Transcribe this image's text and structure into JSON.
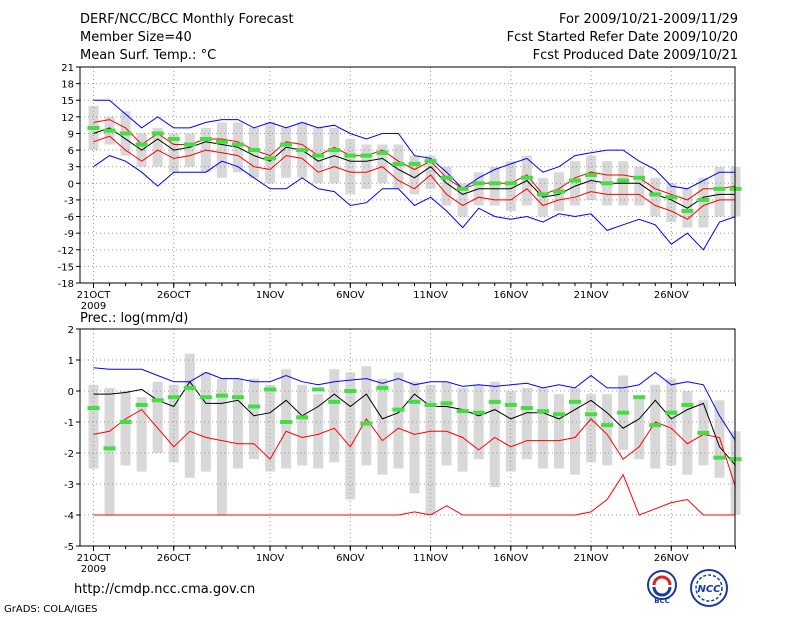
{
  "header": {
    "title": "DERF/NCC/BCC Monthly Forecast",
    "member_size": "Member Size=40",
    "variable": "Mean Surf. Temp.: °C",
    "period": "For 2009/10/21-2009/11/29",
    "start_date": "Fcst Started Refer Date 2009/10/20",
    "produced_date": "Fcst Produced Date 2009/10/21"
  },
  "footer": {
    "url": "http://cmdp.ncc.cma.gov.cn",
    "credit": "GrADS: COLA/IGES",
    "logo_left_text": "BCC",
    "logo_right_text": "NCC"
  },
  "colors": {
    "max_line": "#0000ff",
    "min_line": "#ff0000",
    "mean_line": "#000000",
    "box": "#d8d8d8",
    "green": "#44dd44",
    "grid": "#999999"
  },
  "chart_data": [
    {
      "type": "line",
      "title": "Mean Surf. Temp.: °C",
      "ylim": [
        -18,
        21
      ],
      "yticks": [
        -18,
        -15,
        -12,
        -9,
        -6,
        -3,
        0,
        3,
        6,
        9,
        12,
        15,
        18,
        21
      ],
      "xticks": [
        {
          "day": 0,
          "label": "21OCT",
          "sub": "2009"
        },
        {
          "day": 5,
          "label": "26OCT"
        },
        {
          "day": 11,
          "label": "1NOV"
        },
        {
          "day": 16,
          "label": "6NOV"
        },
        {
          "day": 21,
          "label": "11NOV"
        },
        {
          "day": 26,
          "label": "16NOV"
        },
        {
          "day": 31,
          "label": "21NOV"
        },
        {
          "day": 36,
          "label": "26NOV"
        }
      ],
      "series": [
        {
          "name": "max",
          "color": "#0000ff",
          "values": [
            15,
            15,
            12.5,
            10,
            12,
            10,
            10,
            11,
            11.5,
            11.5,
            10,
            11,
            10,
            11,
            10,
            10.5,
            9,
            8,
            9,
            9,
            5,
            4.5,
            2,
            -1,
            1,
            2.5,
            3.5,
            4.5,
            2,
            3,
            5,
            5.5,
            6,
            6,
            4,
            2.5,
            -0.5,
            -1,
            0.5,
            2,
            2
          ]
        },
        {
          "name": "upper",
          "color": "#ff0000",
          "values": [
            11,
            11.5,
            10,
            7,
            9,
            7,
            7,
            8,
            8,
            7.5,
            6,
            5,
            7.5,
            7,
            5,
            6.5,
            5,
            5,
            6,
            4,
            2.5,
            4,
            1,
            -1,
            0,
            0,
            0,
            1.5,
            -2,
            -1,
            1,
            2,
            1.5,
            1.5,
            1,
            -1,
            -2,
            -3,
            -1,
            -1,
            -0.5
          ]
        },
        {
          "name": "mean",
          "color": "#000000",
          "values": [
            9,
            10,
            8,
            6,
            8,
            6,
            6.5,
            7.5,
            7,
            6.5,
            5,
            4,
            6.5,
            6,
            4,
            5,
            4,
            4,
            4.5,
            2.5,
            1,
            3,
            0,
            -2,
            -1,
            -1,
            -1,
            0.5,
            -2.5,
            -2,
            -0.5,
            0.5,
            0,
            0,
            0,
            -2,
            -3,
            -4.5,
            -2.5,
            -2,
            -2
          ]
        },
        {
          "name": "lower",
          "color": "#ff0000",
          "values": [
            7.5,
            8.5,
            6,
            4,
            6,
            4.5,
            5,
            6,
            5.5,
            5,
            3,
            2.5,
            5,
            4.5,
            2,
            3,
            2,
            2,
            3,
            0.5,
            -1,
            1.5,
            -2,
            -4,
            -2.5,
            -3,
            -3,
            -1,
            -4,
            -3,
            -2.5,
            -1.5,
            -2,
            -2,
            -2,
            -4,
            -5,
            -6.5,
            -4,
            -3,
            -3
          ]
        },
        {
          "name": "min",
          "color": "#0000ff",
          "values": [
            3,
            5,
            4,
            2,
            -0.5,
            2,
            2,
            2,
            4,
            3,
            1,
            -1,
            -1,
            1,
            -1,
            -1.5,
            -4,
            -3.5,
            -1,
            -1,
            -4,
            -2.5,
            -5,
            -8,
            -4.5,
            -6,
            -6.5,
            -6,
            -7,
            -5.5,
            -6,
            -5.5,
            -8.5,
            -7.5,
            -6.5,
            -7.5,
            -11,
            -9,
            -12,
            -7,
            -6
          ]
        }
      ],
      "boxes": [
        [
          6,
          14
        ],
        [
          7,
          12
        ],
        [
          5,
          13
        ],
        [
          3,
          9
        ],
        [
          3,
          10
        ],
        [
          2,
          9
        ],
        [
          3,
          9
        ],
        [
          2,
          10
        ],
        [
          1,
          11
        ],
        [
          2,
          11
        ],
        [
          1,
          10
        ],
        [
          0,
          11
        ],
        [
          1,
          10
        ],
        [
          1,
          11
        ],
        [
          0,
          10
        ],
        [
          0,
          10
        ],
        [
          -2,
          8
        ],
        [
          -1,
          7
        ],
        [
          0,
          7
        ],
        [
          -1,
          7
        ],
        [
          -2,
          5
        ],
        [
          -1,
          5
        ],
        [
          -4,
          3
        ],
        [
          -6,
          0
        ],
        [
          -4,
          2
        ],
        [
          -4,
          3
        ],
        [
          -5,
          4
        ],
        [
          -4,
          5
        ],
        [
          -6,
          1
        ],
        [
          -5,
          2
        ],
        [
          -4,
          4
        ],
        [
          -3,
          5
        ],
        [
          -4,
          4
        ],
        [
          -4,
          4
        ],
        [
          -4,
          3
        ],
        [
          -6,
          1
        ],
        [
          -7,
          0
        ],
        [
          -8,
          -1
        ],
        [
          -8,
          1
        ],
        [
          -6,
          3
        ],
        [
          -6,
          3
        ]
      ],
      "green": [
        10,
        9.5,
        9,
        7,
        9,
        8,
        7,
        8,
        7.5,
        7,
        6,
        4.5,
        7,
        6,
        5,
        6,
        5,
        5,
        5.5,
        3.5,
        3.5,
        4,
        1,
        -1,
        0,
        0,
        0,
        1,
        -2,
        -1.5,
        0.5,
        1.5,
        0,
        0.5,
        1,
        -2,
        -2.5,
        -5,
        -3,
        -1,
        -1
      ]
    },
    {
      "type": "line",
      "title": "Prec.: log(mm/d)",
      "ylim": [
        -5,
        2
      ],
      "yticks": [
        -5,
        -4,
        -3,
        -2,
        -1,
        0,
        1,
        2
      ],
      "xticks": [
        {
          "day": 0,
          "label": "21OCT",
          "sub": "2009"
        },
        {
          "day": 5,
          "label": "26OCT"
        },
        {
          "day": 11,
          "label": "1NOV"
        },
        {
          "day": 16,
          "label": "6NOV"
        },
        {
          "day": 21,
          "label": "11NOV"
        },
        {
          "day": 26,
          "label": "16NOV"
        },
        {
          "day": 31,
          "label": "21NOV"
        },
        {
          "day": 36,
          "label": "26NOV"
        }
      ],
      "series": [
        {
          "name": "max",
          "color": "#0000ff",
          "values": [
            0.75,
            0.7,
            0.7,
            0.7,
            0.5,
            0.3,
            0.3,
            0.6,
            0.4,
            0.4,
            0.3,
            0.3,
            0.5,
            0.3,
            0.2,
            0.3,
            0.35,
            0.4,
            0.25,
            0.4,
            0.2,
            0.3,
            0.3,
            0.15,
            0.2,
            0.15,
            0.2,
            0.25,
            0.1,
            0.2,
            0.1,
            0.5,
            0.1,
            0.1,
            0.2,
            0.6,
            0.2,
            0.3,
            0.2,
            -0.8,
            -1.6
          ]
        },
        {
          "name": "mean",
          "color": "#000000",
          "values": [
            -0.1,
            -0.1,
            -0.05,
            0.05,
            -0.3,
            -0.5,
            0.3,
            -0.4,
            -0.4,
            -0.3,
            -0.8,
            -0.7,
            -0.3,
            -0.8,
            -0.5,
            -0.1,
            -0.5,
            -0.1,
            -0.9,
            -0.7,
            -0.1,
            -0.5,
            -0.5,
            -0.6,
            -0.8,
            -0.6,
            -0.9,
            -0.7,
            -0.7,
            -0.9,
            -0.6,
            -0.3,
            -0.7,
            -1.2,
            -0.9,
            -0.3,
            -0.9,
            -0.6,
            -0.4,
            -1.8,
            -2.4
          ]
        },
        {
          "name": "low",
          "color": "#ff0000",
          "values": [
            -1.4,
            -1.3,
            -0.9,
            -0.6,
            -1.2,
            -1.8,
            -1.3,
            -1.5,
            -1.6,
            -1.7,
            -1.7,
            -2.2,
            -1.3,
            -1.5,
            -1.4,
            -1.2,
            -1.8,
            -0.9,
            -1.6,
            -1.2,
            -1.4,
            -1.3,
            -1.3,
            -1.5,
            -1.9,
            -1.5,
            -1.8,
            -1.6,
            -1.6,
            -1.6,
            -1.5,
            -0.9,
            -1.4,
            -2.2,
            -1.8,
            -1.0,
            -1.2,
            -1.7,
            -1.4,
            -1.5,
            -3.1
          ]
        },
        {
          "name": "floor",
          "color": "#ff0000",
          "values": [
            -4,
            -4,
            -4,
            -4,
            -4,
            -4,
            -4,
            -4,
            -4,
            -4,
            -4,
            -4,
            -4,
            -4,
            -4,
            -4,
            -4,
            -4,
            -4,
            -4,
            -3.9,
            -4,
            -3.7,
            -4,
            -4,
            -4,
            -4,
            -4,
            -4,
            -4,
            -4,
            -3.9,
            -3.5,
            -2.7,
            -4,
            -3.8,
            -3.6,
            -3.5,
            -4,
            -4,
            -4
          ]
        }
      ],
      "boxes": [
        [
          -2.5,
          0.2
        ],
        [
          -4,
          0.1
        ],
        [
          -2.4,
          0
        ],
        [
          -2.6,
          -0.2
        ],
        [
          -2,
          0.3
        ],
        [
          -2.3,
          0.2
        ],
        [
          -2.8,
          1.2
        ],
        [
          -2.6,
          0.6
        ],
        [
          -4,
          0.4
        ],
        [
          -2.5,
          0.4
        ],
        [
          -2.2,
          0.4
        ],
        [
          -2.6,
          0.2
        ],
        [
          -2.5,
          0.7
        ],
        [
          -2.4,
          0.2
        ],
        [
          -2.5,
          -0.1
        ],
        [
          -2.3,
          0.7
        ],
        [
          -3.5,
          0.6
        ],
        [
          -2.4,
          0.8
        ],
        [
          -2.7,
          0.4
        ],
        [
          -2.5,
          0.6
        ],
        [
          -3.3,
          0.3
        ],
        [
          -4,
          0.2
        ],
        [
          -2.4,
          0.3
        ],
        [
          -2.6,
          0.1
        ],
        [
          -2.2,
          0.2
        ],
        [
          -3.1,
          0.3
        ],
        [
          -2.6,
          0
        ],
        [
          -2.2,
          0.1
        ],
        [
          -2.5,
          0.1
        ],
        [
          -2.5,
          -0.1
        ],
        [
          -2.7,
          0.1
        ],
        [
          -2.3,
          -0.1
        ],
        [
          -2.4,
          -0.1
        ],
        [
          -1.9,
          0.5
        ],
        [
          -2.2,
          -0.2
        ],
        [
          -2.5,
          0.2
        ],
        [
          -2.4,
          0.4
        ],
        [
          -2.7,
          0
        ],
        [
          -2.4,
          -0.3
        ],
        [
          -2.8,
          -0.3
        ],
        [
          -4,
          -1.3
        ]
      ],
      "green": [
        -0.55,
        -1.85,
        -1.0,
        -0.45,
        -0.3,
        -0.2,
        0.1,
        -0.2,
        -0.15,
        -0.2,
        -0.5,
        0.05,
        -1.0,
        -0.85,
        0.05,
        -0.35,
        0.0,
        -1.05,
        0.1,
        -0.6,
        -0.35,
        -0.45,
        -0.4,
        -0.65,
        -0.7,
        -0.35,
        -0.45,
        -0.55,
        -0.65,
        -0.75,
        -0.35,
        -0.75,
        -1.1,
        -0.7,
        -0.2,
        -1.1,
        -0.7,
        -0.45,
        -1.35,
        -2.15,
        -2.2
      ]
    }
  ]
}
